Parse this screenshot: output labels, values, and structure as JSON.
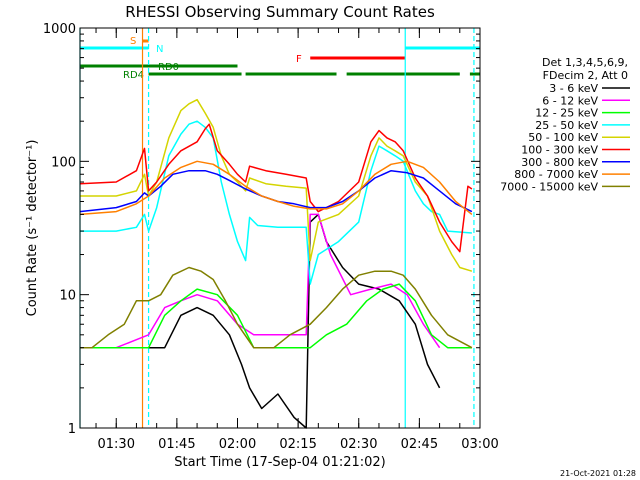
{
  "chart_data": {
    "type": "line",
    "title": "RHESSI Observing Summary Count Rates",
    "xlabel": "Start Time (17-Sep-04 01:21:02)",
    "ylabel": "Count Rate (s⁻¹ detector⁻¹)",
    "y_scale": "log",
    "ylim": [
      1,
      1000
    ],
    "xlim": [
      "01:21:02",
      "03:00:00"
    ],
    "x_ticks": [
      "01:30",
      "01:45",
      "02:00",
      "02:15",
      "02:30",
      "02:45",
      "03:00"
    ],
    "y_ticks": [
      "1",
      "10",
      "100",
      "1000"
    ],
    "footer": "21-Oct-2021 01:28",
    "legend_header": [
      "Det 1,3,4,5,6,9,",
      "FDecim 2, Att 0"
    ],
    "series": [
      {
        "name": "3 - 6 keV",
        "color": "#000000",
        "points": [
          [
            "01:21",
            4
          ],
          [
            "01:30",
            4
          ],
          [
            "01:38",
            4
          ],
          [
            "01:42",
            4
          ],
          [
            "01:46",
            7
          ],
          [
            "01:50",
            8
          ],
          [
            "01:54",
            7
          ],
          [
            "01:58",
            5
          ],
          [
            "02:01",
            3
          ],
          [
            "02:03",
            2
          ],
          [
            "02:06",
            1.4
          ],
          [
            "02:10",
            1.8
          ],
          [
            "02:14",
            1.2
          ],
          [
            "02:17",
            1
          ],
          [
            "02:18",
            35
          ],
          [
            "02:20",
            40
          ],
          [
            "02:22",
            25
          ],
          [
            "02:26",
            16
          ],
          [
            "02:30",
            12
          ],
          [
            "02:35",
            11
          ],
          [
            "02:40",
            9
          ],
          [
            "02:44",
            6
          ],
          [
            "02:47",
            3
          ],
          [
            "02:50",
            2
          ]
        ]
      },
      {
        "name": "6 - 12 keV",
        "color": "#ff00ff",
        "points": [
          [
            "01:21",
            4
          ],
          [
            "01:30",
            4
          ],
          [
            "01:38",
            5
          ],
          [
            "01:42",
            8
          ],
          [
            "01:46",
            9
          ],
          [
            "01:50",
            10
          ],
          [
            "01:55",
            9
          ],
          [
            "02:00",
            6
          ],
          [
            "02:04",
            5
          ],
          [
            "02:09",
            5
          ],
          [
            "02:14",
            5
          ],
          [
            "02:17",
            5
          ],
          [
            "02:18",
            40
          ],
          [
            "02:20",
            40
          ],
          [
            "02:23",
            20
          ],
          [
            "02:28",
            10
          ],
          [
            "02:33",
            11
          ],
          [
            "02:38",
            12
          ],
          [
            "02:42",
            10
          ],
          [
            "02:46",
            6
          ],
          [
            "02:50",
            4
          ]
        ]
      },
      {
        "name": "12 - 25 keV",
        "color": "#00ff00",
        "points": [
          [
            "01:21",
            4
          ],
          [
            "01:30",
            4
          ],
          [
            "01:38",
            4
          ],
          [
            "01:42",
            7
          ],
          [
            "01:46",
            9
          ],
          [
            "01:50",
            11
          ],
          [
            "01:55",
            10
          ],
          [
            "02:00",
            7
          ],
          [
            "02:04",
            4
          ],
          [
            "02:09",
            4
          ],
          [
            "02:14",
            4
          ],
          [
            "02:18",
            4
          ],
          [
            "02:22",
            5
          ],
          [
            "02:27",
            6
          ],
          [
            "02:32",
            9
          ],
          [
            "02:36",
            11
          ],
          [
            "02:40",
            12
          ],
          [
            "02:44",
            9
          ],
          [
            "02:48",
            5
          ],
          [
            "02:52",
            4
          ],
          [
            "02:58",
            4
          ]
        ]
      },
      {
        "name": "25 - 50 keV",
        "color": "#00ffff",
        "points": [
          [
            "01:21",
            30
          ],
          [
            "01:30",
            30
          ],
          [
            "01:35",
            32
          ],
          [
            "01:37",
            40
          ],
          [
            "01:38",
            30
          ],
          [
            "01:40",
            45
          ],
          [
            "01:43",
            110
          ],
          [
            "01:46",
            160
          ],
          [
            "01:48",
            190
          ],
          [
            "01:50",
            200
          ],
          [
            "01:52",
            180
          ],
          [
            "01:54",
            150
          ],
          [
            "01:56",
            70
          ],
          [
            "01:58",
            40
          ],
          [
            "02:00",
            25
          ],
          [
            "02:02",
            18
          ],
          [
            "02:03",
            38
          ],
          [
            "02:05",
            33
          ],
          [
            "02:10",
            32
          ],
          [
            "02:15",
            32
          ],
          [
            "02:17",
            32
          ],
          [
            "02:18",
            12
          ],
          [
            "02:20",
            20
          ],
          [
            "02:25",
            25
          ],
          [
            "02:30",
            35
          ],
          [
            "02:33",
            85
          ],
          [
            "02:35",
            130
          ],
          [
            "02:37",
            120
          ],
          [
            "02:39",
            110
          ],
          [
            "02:41",
            100
          ],
          [
            "02:44",
            60
          ],
          [
            "02:46",
            48
          ],
          [
            "02:48",
            42
          ],
          [
            "02:50",
            40
          ],
          [
            "02:52",
            30
          ],
          [
            "02:58",
            29
          ]
        ]
      },
      {
        "name": "50 - 100 keV",
        "color": "#d4d400",
        "points": [
          [
            "01:21",
            55
          ],
          [
            "01:30",
            55
          ],
          [
            "01:35",
            60
          ],
          [
            "01:37",
            80
          ],
          [
            "01:38",
            55
          ],
          [
            "01:40",
            70
          ],
          [
            "01:43",
            150
          ],
          [
            "01:46",
            240
          ],
          [
            "01:48",
            270
          ],
          [
            "01:50",
            290
          ],
          [
            "01:52",
            230
          ],
          [
            "01:54",
            180
          ],
          [
            "01:56",
            110
          ],
          [
            "01:58",
            80
          ],
          [
            "02:00",
            70
          ],
          [
            "02:02",
            60
          ],
          [
            "02:03",
            75
          ],
          [
            "02:07",
            68
          ],
          [
            "02:12",
            65
          ],
          [
            "02:17",
            63
          ],
          [
            "02:18",
            18
          ],
          [
            "02:20",
            35
          ],
          [
            "02:25",
            40
          ],
          [
            "02:30",
            55
          ],
          [
            "02:33",
            110
          ],
          [
            "02:35",
            150
          ],
          [
            "02:37",
            130
          ],
          [
            "02:39",
            120
          ],
          [
            "02:41",
            110
          ],
          [
            "02:44",
            70
          ],
          [
            "02:47",
            55
          ],
          [
            "02:50",
            30
          ],
          [
            "02:53",
            20
          ],
          [
            "02:55",
            16
          ],
          [
            "02:58",
            15
          ]
        ]
      },
      {
        "name": "100 - 300 keV",
        "color": "#ff0000",
        "points": [
          [
            "01:21",
            68
          ],
          [
            "01:30",
            70
          ],
          [
            "01:35",
            85
          ],
          [
            "01:37",
            125
          ],
          [
            "01:38",
            60
          ],
          [
            "01:40",
            70
          ],
          [
            "01:43",
            95
          ],
          [
            "01:46",
            120
          ],
          [
            "01:50",
            140
          ],
          [
            "01:52",
            175
          ],
          [
            "01:53",
            190
          ],
          [
            "01:55",
            120
          ],
          [
            "01:58",
            95
          ],
          [
            "02:00",
            80
          ],
          [
            "02:02",
            70
          ],
          [
            "02:03",
            92
          ],
          [
            "02:07",
            85
          ],
          [
            "02:12",
            80
          ],
          [
            "02:17",
            75
          ],
          [
            "02:18",
            50
          ],
          [
            "02:20",
            42
          ],
          [
            "02:25",
            50
          ],
          [
            "02:30",
            70
          ],
          [
            "02:33",
            140
          ],
          [
            "02:35",
            170
          ],
          [
            "02:37",
            150
          ],
          [
            "02:39",
            140
          ],
          [
            "02:41",
            120
          ],
          [
            "02:44",
            75
          ],
          [
            "02:47",
            55
          ],
          [
            "02:50",
            35
          ],
          [
            "02:53",
            25
          ],
          [
            "02:55",
            21
          ],
          [
            "02:57",
            65
          ],
          [
            "02:58",
            62
          ]
        ]
      },
      {
        "name": "300 - 800 keV",
        "color": "#0000ff",
        "points": [
          [
            "01:21",
            42
          ],
          [
            "01:30",
            45
          ],
          [
            "01:35",
            50
          ],
          [
            "01:37",
            58
          ],
          [
            "01:38",
            55
          ],
          [
            "01:41",
            65
          ],
          [
            "01:44",
            80
          ],
          [
            "01:48",
            85
          ],
          [
            "01:52",
            85
          ],
          [
            "01:55",
            80
          ],
          [
            "01:58",
            72
          ],
          [
            "02:02",
            62
          ],
          [
            "02:06",
            55
          ],
          [
            "02:10",
            50
          ],
          [
            "02:14",
            48
          ],
          [
            "02:18",
            45
          ],
          [
            "02:22",
            45
          ],
          [
            "02:26",
            50
          ],
          [
            "02:30",
            60
          ],
          [
            "02:34",
            75
          ],
          [
            "02:38",
            85
          ],
          [
            "02:42",
            82
          ],
          [
            "02:46",
            75
          ],
          [
            "02:50",
            60
          ],
          [
            "02:54",
            48
          ],
          [
            "02:58",
            42
          ]
        ]
      },
      {
        "name": "800 - 7000 keV",
        "color": "#ff8000",
        "points": [
          [
            "01:21",
            40
          ],
          [
            "01:30",
            42
          ],
          [
            "01:35",
            48
          ],
          [
            "01:38",
            55
          ],
          [
            "01:42",
            75
          ],
          [
            "01:46",
            90
          ],
          [
            "01:50",
            100
          ],
          [
            "01:54",
            95
          ],
          [
            "01:58",
            80
          ],
          [
            "02:02",
            65
          ],
          [
            "02:06",
            55
          ],
          [
            "02:10",
            50
          ],
          [
            "02:14",
            46
          ],
          [
            "02:18",
            44
          ],
          [
            "02:22",
            44
          ],
          [
            "02:26",
            48
          ],
          [
            "02:30",
            60
          ],
          [
            "02:34",
            80
          ],
          [
            "02:38",
            95
          ],
          [
            "02:42",
            100
          ],
          [
            "02:46",
            90
          ],
          [
            "02:50",
            70
          ],
          [
            "02:54",
            50
          ],
          [
            "02:58",
            40
          ]
        ]
      },
      {
        "name": "7000 - 15000 keV",
        "color": "#808000",
        "points": [
          [
            "01:21",
            4
          ],
          [
            "01:24",
            4
          ],
          [
            "01:28",
            5
          ],
          [
            "01:32",
            6
          ],
          [
            "01:35",
            9
          ],
          [
            "01:38",
            9
          ],
          [
            "01:41",
            10
          ],
          [
            "01:44",
            14
          ],
          [
            "01:48",
            16
          ],
          [
            "01:51",
            15
          ],
          [
            "01:54",
            13
          ],
          [
            "01:57",
            9
          ],
          [
            "02:00",
            6
          ],
          [
            "02:04",
            4
          ],
          [
            "02:09",
            4
          ],
          [
            "02:13",
            5
          ],
          [
            "02:18",
            6
          ],
          [
            "02:22",
            8
          ],
          [
            "02:26",
            11
          ],
          [
            "02:30",
            14
          ],
          [
            "02:34",
            15
          ],
          [
            "02:38",
            15
          ],
          [
            "02:41",
            14
          ],
          [
            "02:44",
            11
          ],
          [
            "02:48",
            7
          ],
          [
            "02:52",
            5
          ],
          [
            "02:58",
            4
          ]
        ]
      }
    ],
    "vertical_lines": [
      {
        "time": "01:21:02",
        "color": "#00ffff",
        "style": "solid"
      },
      {
        "time": "01:36:30",
        "color": "#ff8000",
        "style": "solid"
      },
      {
        "time": "01:38:00",
        "color": "#00ffff",
        "style": "dashed"
      },
      {
        "time": "02:41:30",
        "color": "#00ffff",
        "style": "solid"
      },
      {
        "time": "02:58:30",
        "color": "#00ffff",
        "style": "dashed"
      }
    ],
    "flag_bars": [
      {
        "label": "S",
        "color": "#ff8000",
        "segments": [
          [
            "01:36:30",
            "01:38:00"
          ]
        ]
      },
      {
        "label": "N",
        "color": "#00ffff",
        "segments": [
          [
            "01:21:02",
            "01:38:00"
          ],
          [
            "02:41:30",
            "03:00:00"
          ]
        ]
      },
      {
        "label": "F",
        "color": "#ff0000",
        "segments": [
          [
            "02:18:00",
            "02:41:30"
          ]
        ]
      },
      {
        "label": "RD0",
        "color": "#008000",
        "segments": [
          [
            "01:21:02",
            "02:00:00"
          ]
        ]
      },
      {
        "label": "RD4",
        "color": "#008000",
        "segments": [
          [
            "01:38:00",
            "02:01:00"
          ],
          [
            "02:02:00",
            "02:24:30"
          ],
          [
            "02:27:00",
            "02:55:00"
          ],
          [
            "02:57:30",
            "03:00:00"
          ]
        ]
      }
    ]
  }
}
